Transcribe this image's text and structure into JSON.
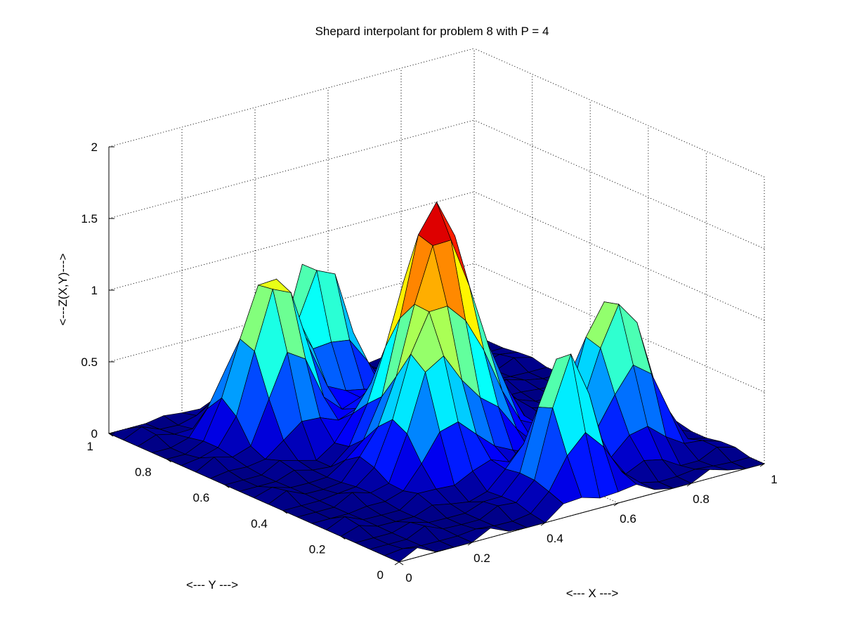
{
  "chart_data": {
    "type": "surface",
    "title": "Shepard interpolant for problem 8 with P = 4",
    "xlabel": "<--- X --->",
    "ylabel": "<--- Y --->",
    "zlabel": "<---Z(X,Y)--->",
    "xlim": [
      0,
      1
    ],
    "ylim": [
      0,
      1
    ],
    "zlim": [
      0,
      2
    ],
    "x_ticks": [
      "0",
      "0.2",
      "0.4",
      "0.6",
      "0.8",
      "1"
    ],
    "y_ticks": [
      "0",
      "0.2",
      "0.4",
      "0.6",
      "0.8",
      "1"
    ],
    "z_ticks": [
      "0",
      "0.5",
      "1",
      "1.5",
      "2"
    ],
    "grid": true,
    "colormap": "jet",
    "mesh": {
      "rows": 21,
      "cols": 21,
      "edge_color": "#000000"
    },
    "peak_z_max": 1.72,
    "features": [
      {
        "x": 0.5,
        "y": 0.5,
        "z": 1.5,
        "spread": 0.085
      },
      {
        "x": 0.27,
        "y": 0.78,
        "z": 1.1,
        "spread": 0.07
      },
      {
        "x": 0.8,
        "y": 0.27,
        "z": 1.0,
        "spread": 0.07
      },
      {
        "x": 0.47,
        "y": 0.87,
        "z": 1.0,
        "spread": 0.06
      },
      {
        "x": 0.55,
        "y": 0.12,
        "z": 0.9,
        "spread": 0.06
      },
      {
        "x": 0.62,
        "y": 0.62,
        "z": 0.7,
        "spread": 0.07
      },
      {
        "x": 0.38,
        "y": 0.38,
        "z": 0.7,
        "spread": 0.07
      }
    ]
  }
}
